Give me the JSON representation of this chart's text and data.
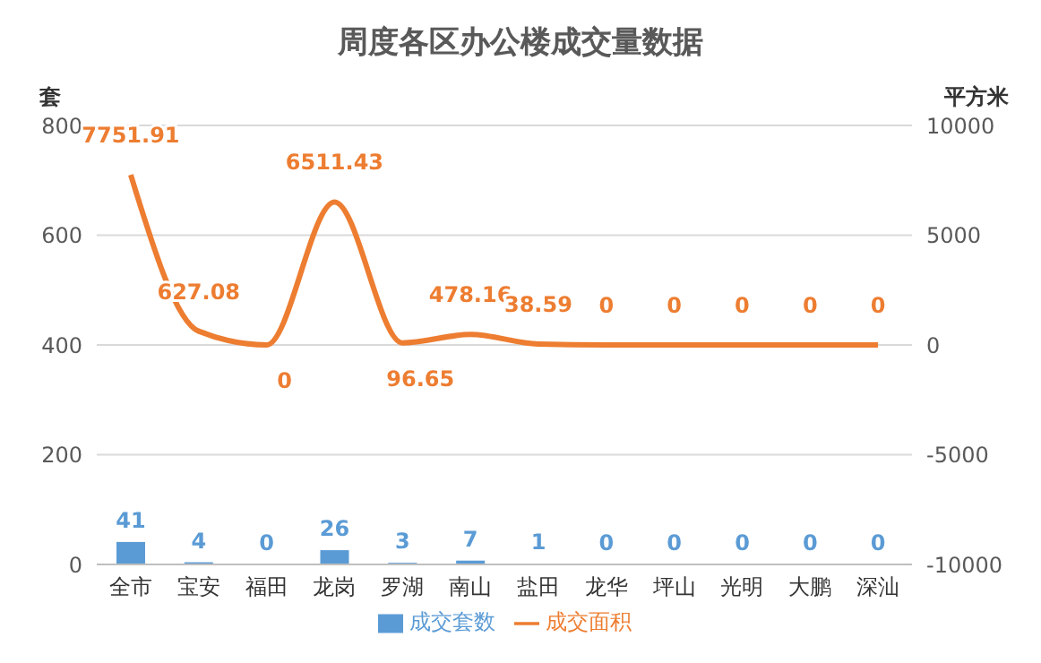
{
  "chart_data": {
    "type": "bar",
    "title": "周度各区办公楼成交量数据",
    "ylabel": "套",
    "y2label": "平方米",
    "categories": [
      "全市",
      "宝安",
      "福田",
      "龙岗",
      "罗湖",
      "南山",
      "盐田",
      "龙华",
      "坪山",
      "光明",
      "大鹏",
      "深汕"
    ],
    "series": [
      {
        "name": "成交套数",
        "color": "#5b9bd5",
        "values": [
          41,
          4,
          0,
          26,
          3,
          7,
          1,
          0,
          0,
          0,
          0,
          0
        ]
      },
      {
        "name": "成交面积",
        "type": "line",
        "axis": "y2",
        "color": "#ed7d31",
        "values": [
          7751.91,
          627.08,
          0,
          6511.43,
          96.65,
          478.16,
          38.59,
          0,
          0,
          0,
          0,
          0
        ]
      }
    ],
    "ylim": [
      0,
      800
    ],
    "yticks": [
      0,
      200,
      400,
      600,
      800
    ],
    "y2lim": [
      -10000,
      10000
    ],
    "y2ticks": [
      -10000,
      -5000,
      0,
      5000,
      10000
    ],
    "grid": "y",
    "legend": "bottom",
    "data_labels": true,
    "marker": "none"
  }
}
